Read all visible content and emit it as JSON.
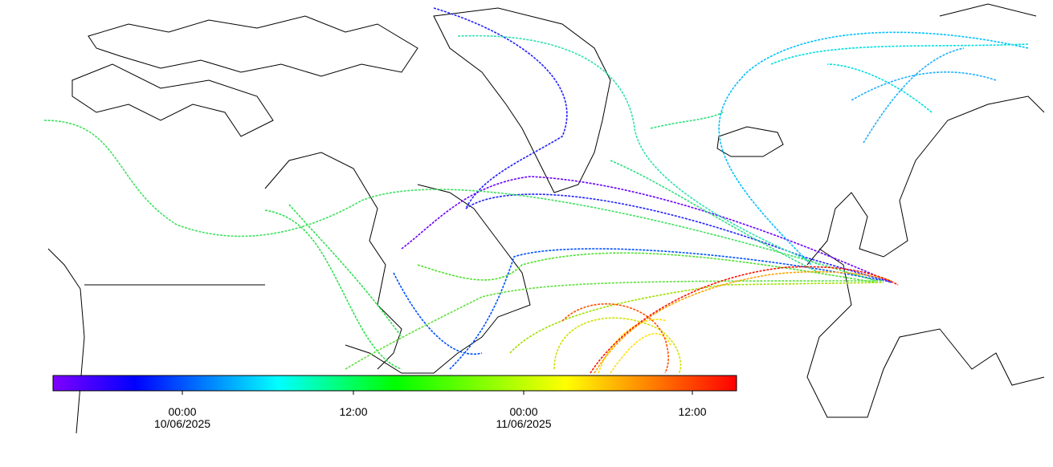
{
  "colorbar": {
    "ticks": [
      {
        "time": "00:00",
        "date": "10/06/2025"
      },
      {
        "time": "12:00"
      },
      {
        "time": "00:00",
        "date": "11/06/2025"
      },
      {
        "time": "12:00"
      }
    ]
  }
}
